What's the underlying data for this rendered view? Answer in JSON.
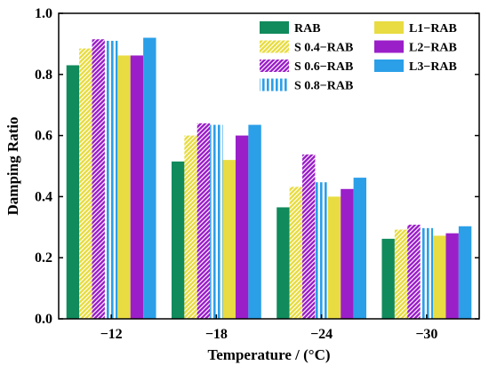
{
  "chart_data": {
    "type": "bar",
    "xlabel": "Temperature / (°C)",
    "ylabel": "Damping Ratio",
    "ylim": [
      0.0,
      1.0
    ],
    "yticks": [
      0.0,
      0.2,
      0.4,
      0.6,
      0.8,
      1.0
    ],
    "ytick_labels": [
      "0.0",
      "0.2",
      "0.4",
      "0.6",
      "0.8",
      "1.0"
    ],
    "categories": [
      "−12",
      "−18",
      "−24",
      "−30"
    ],
    "grid": false,
    "legend_position": "top-right",
    "series": [
      {
        "name": "RAB",
        "color": "#118a5c",
        "pattern": "solid",
        "values": [
          0.83,
          0.515,
          0.365,
          0.262
        ]
      },
      {
        "name": "S 0.4−RAB",
        "color": "#e8dc42",
        "pattern": "diagonal",
        "values": [
          0.885,
          0.6,
          0.432,
          0.292
        ]
      },
      {
        "name": "S 0.6−RAB",
        "color": "#9b1fc9",
        "pattern": "diagonal",
        "values": [
          0.915,
          0.64,
          0.538,
          0.308
        ]
      },
      {
        "name": "S 0.8−RAB",
        "color": "#2b9fe8",
        "pattern": "vertical",
        "values": [
          0.91,
          0.635,
          0.447,
          0.297
        ]
      },
      {
        "name": "L1−RAB",
        "color": "#e8dc42",
        "pattern": "solid",
        "values": [
          0.862,
          0.52,
          0.4,
          0.272
        ]
      },
      {
        "name": "L2−RAB",
        "color": "#9b1fc9",
        "pattern": "solid",
        "values": [
          0.862,
          0.6,
          0.425,
          0.28
        ]
      },
      {
        "name": "L3−RAB",
        "color": "#2b9fe8",
        "pattern": "solid",
        "values": [
          0.92,
          0.635,
          0.462,
          0.303
        ]
      }
    ]
  }
}
